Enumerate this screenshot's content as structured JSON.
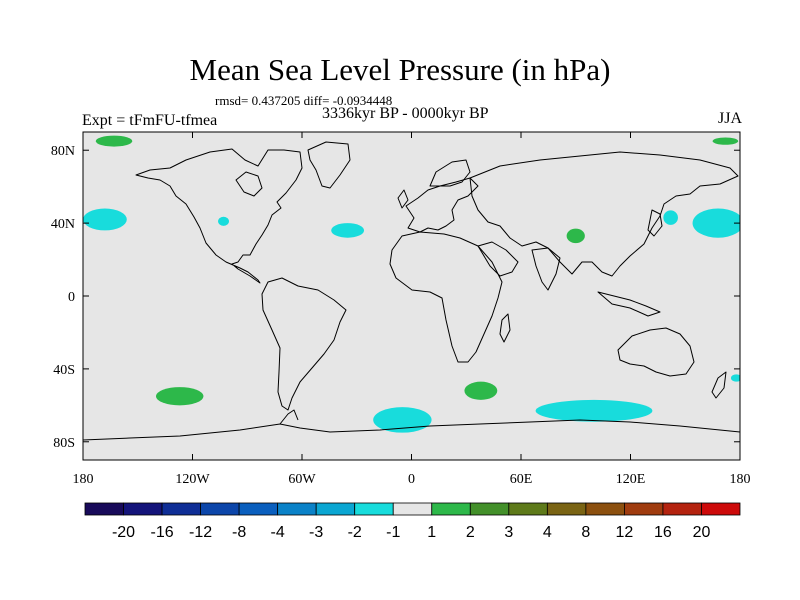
{
  "title": "Mean Sea Level Pressure (in hPa)",
  "stats": "rmsd= 0.437205 diff= -0.0934448",
  "experiment": "Expt = tFmFU-tfmea",
  "period": "3336kyr BP - 0000kyr BP",
  "season": "JJA",
  "colors": {
    "background": "#e6e6e6",
    "neg_fill": "#18dcdc",
    "pos_fill": "#2db84a",
    "coast": "#000000"
  },
  "chart_data": {
    "type": "heatmap",
    "variable": "Mean Sea Level Pressure difference",
    "units": "hPa",
    "xlim": [
      -180,
      180
    ],
    "ylim": [
      -90,
      90
    ],
    "x_ticks": [
      {
        "value": -180,
        "label": "180"
      },
      {
        "value": -120,
        "label": "120W"
      },
      {
        "value": -60,
        "label": "60W"
      },
      {
        "value": 0,
        "label": "0"
      },
      {
        "value": 60,
        "label": "60E"
      },
      {
        "value": 120,
        "label": "120E"
      },
      {
        "value": 180,
        "label": "180"
      }
    ],
    "y_ticks": [
      {
        "value": 80,
        "label": "80N"
      },
      {
        "value": 40,
        "label": "40N"
      },
      {
        "value": 0,
        "label": "0"
      },
      {
        "value": -40,
        "label": "40S"
      },
      {
        "value": -80,
        "label": "80S"
      }
    ],
    "colorbar": {
      "colors": [
        "#180a5a",
        "#14147a",
        "#0f2e96",
        "#0c46aa",
        "#0a5fbe",
        "#0a82c8",
        "#0aa6d2",
        "#18dcdc",
        "#e6e6e6",
        "#2db84a",
        "#43902a",
        "#5e7a1a",
        "#7a6414",
        "#8c500f",
        "#a03c0f",
        "#b4230f",
        "#cd0a0a"
      ],
      "labels": [
        "-20",
        "-16",
        "-12",
        "-8",
        "-4",
        "-3",
        "-2",
        "-1",
        "1",
        "2",
        "3",
        "4",
        "8",
        "12",
        "16",
        "20"
      ]
    },
    "anomalies": [
      {
        "sign": "negative",
        "lon": -168,
        "lat": 42,
        "rx": 12,
        "ry": 6
      },
      {
        "sign": "negative",
        "lon": -103,
        "lat": 41,
        "rx": 3,
        "ry": 2.5
      },
      {
        "sign": "negative",
        "lon": -35,
        "lat": 36,
        "rx": 9,
        "ry": 4
      },
      {
        "sign": "negative",
        "lon": 142,
        "lat": 43,
        "rx": 4,
        "ry": 4
      },
      {
        "sign": "negative",
        "lon": 168,
        "lat": 40,
        "rx": 14,
        "ry": 8
      },
      {
        "sign": "negative",
        "lon": 178,
        "lat": -45,
        "rx": 3,
        "ry": 2
      },
      {
        "sign": "negative",
        "lon": -5,
        "lat": -68,
        "rx": 16,
        "ry": 7
      },
      {
        "sign": "negative",
        "lon": 100,
        "lat": -63,
        "rx": 32,
        "ry": 6
      },
      {
        "sign": "positive",
        "lon": -163,
        "lat": 85,
        "rx": 10,
        "ry": 3
      },
      {
        "sign": "positive",
        "lon": 172,
        "lat": 85,
        "rx": 7,
        "ry": 2
      },
      {
        "sign": "positive",
        "lon": 90,
        "lat": 33,
        "rx": 5,
        "ry": 4
      },
      {
        "sign": "positive",
        "lon": -127,
        "lat": -55,
        "rx": 13,
        "ry": 5
      },
      {
        "sign": "positive",
        "lon": 38,
        "lat": -52,
        "rx": 9,
        "ry": 5
      }
    ]
  }
}
